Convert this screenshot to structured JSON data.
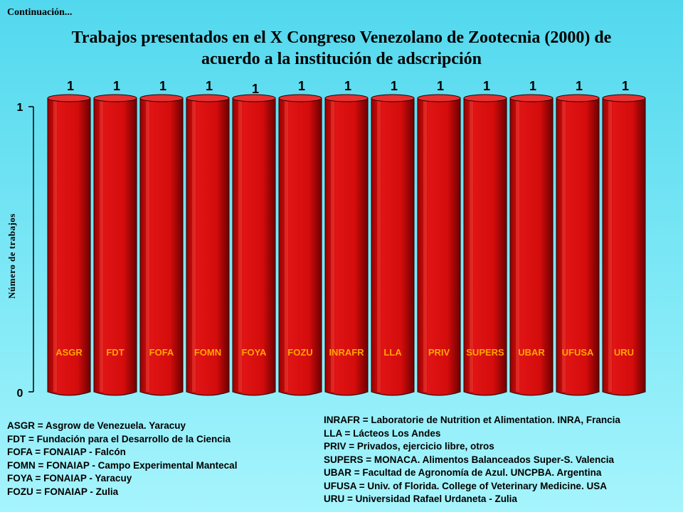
{
  "continuation": "Continuación...",
  "title_lines": [
    "Trabajos presentados en el X Congreso Venezolano de Zootecnia (2000) de",
    "acuerdo a la institución de adscripción"
  ],
  "colors": {
    "bar": "#dd1010",
    "bar_dark": "#7a0000",
    "bar_top": "#e83030",
    "category_label": "#ffa500",
    "background": "#66e0f2"
  },
  "chart_data": {
    "type": "bar",
    "title": "Trabajos presentados en el X Congreso Venezolano de Zootecnia (2000) de acuerdo a la institución de adscripción",
    "ylabel": "Número de trabajos",
    "xlabel": "",
    "categories": [
      "ASGR",
      "FDT",
      "FOFA",
      "FOMN",
      "FOYA",
      "FOZU",
      "INRAFR",
      "LLA",
      "PRIV",
      "SUPERS",
      "UBAR",
      "UFUSA",
      "URU"
    ],
    "values": [
      1,
      1,
      1,
      1,
      1,
      1,
      1,
      1,
      1,
      1,
      1,
      1,
      1
    ],
    "data_labels": [
      "1",
      "1",
      "1",
      "1",
      "1",
      "1",
      "1",
      "1",
      "1",
      "1",
      "1",
      "1",
      "1"
    ],
    "ylim": [
      0,
      1
    ],
    "yticks": [
      "0",
      "1"
    ],
    "grid": false,
    "style": "3d-cylinder"
  },
  "legend_left": [
    "ASGR = Asgrow de Venezuela. Yaracuy",
    "FDT = Fundación para el Desarrollo de la Ciencia",
    "FOFA = FONAIAP - Falcón",
    "FOMN = FONAIAP  - Campo Experimental Mantecal",
    "FOYA = FONAIAP - Yaracuy",
    "FOZU = FONAIAP - Zulia"
  ],
  "legend_right": [
    "INRAFR = Laboratorie de Nutrition et Alimentation. INRA, Francia",
    "LLA = Lácteos Los Andes",
    "PRIV = Privados, ejercicio libre, otros",
    "SUPERS = MONACA. Alimentos Balanceados Super-S. Valencia",
    "UBAR = Facultad de Agronomía de Azul. UNCPBA. Argentina",
    "UFUSA = Univ. of Florida. College of Veterinary  Medicine. USA",
    "URU = Universidad Rafael Urdaneta - Zulia"
  ]
}
